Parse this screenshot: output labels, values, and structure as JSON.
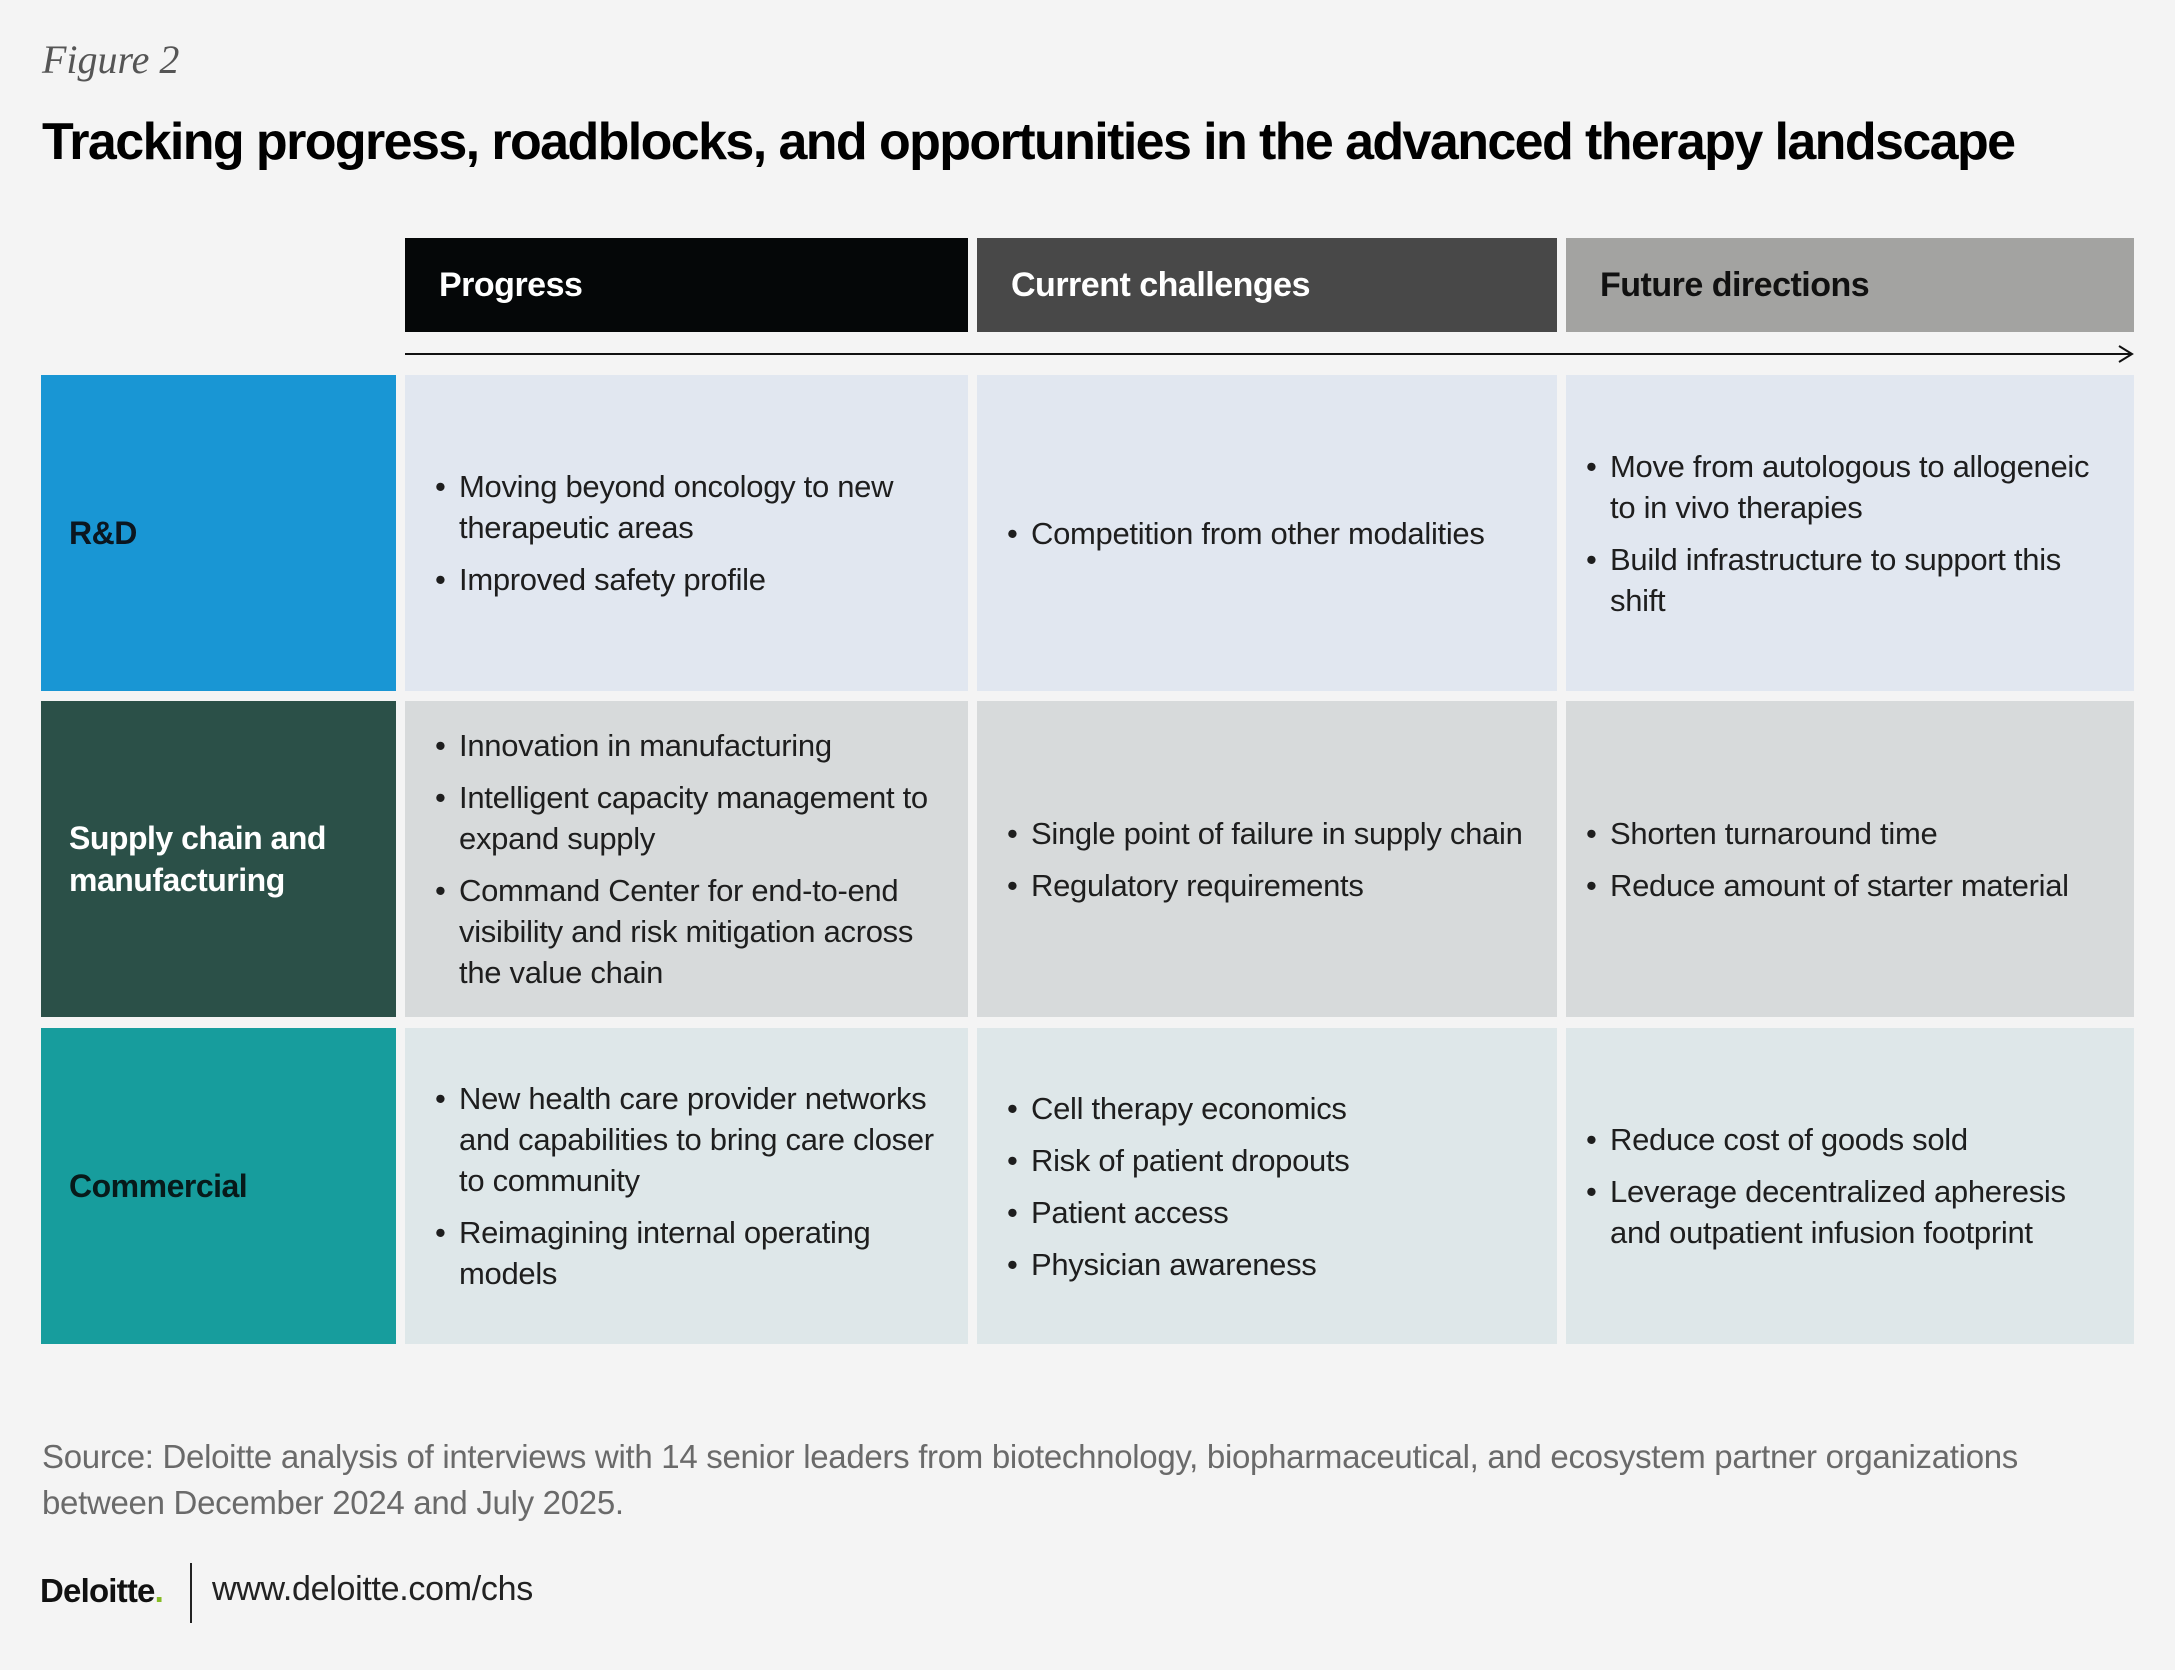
{
  "figure_label": "Figure 2",
  "title": "Tracking progress, roadblocks, and opportunities in the advanced therapy landscape",
  "columns": [
    "Progress",
    "Current challenges",
    "Future directions"
  ],
  "rows": [
    {
      "label": "R&D",
      "color": "#1996d4",
      "progress": [
        "Moving beyond oncology to new therapeutic areas",
        "Improved safety profile"
      ],
      "challenges": [
        "Competition from other modalities"
      ],
      "future": [
        "Move from autologous to allogeneic to in vivo therapies",
        "Build infrastructure to support this shift"
      ]
    },
    {
      "label": "Supply chain and manufacturing",
      "color": "#2b5048",
      "progress": [
        "Innovation in manufacturing",
        "Intelligent capacity management to expand supply",
        "Command Center for end-to-end visibility and risk mitigation across the value chain"
      ],
      "challenges": [
        "Single point of failure in supply chain",
        "Regulatory requirements"
      ],
      "future": [
        "Shorten turnaround time",
        "Reduce amount of starter material"
      ]
    },
    {
      "label": "Commercial",
      "color": "#179d9d",
      "progress": [
        "New health care provider networks and capabilities to bring care closer to community",
        "Reimagining internal operating models"
      ],
      "challenges": [
        "Cell therapy economics",
        "Risk of patient dropouts",
        "Patient access",
        "Physician awareness"
      ],
      "future": [
        "Reduce cost of goods sold",
        "Leverage decentralized apheresis and outpatient infusion footprint"
      ]
    }
  ],
  "source": "Source: Deloitte analysis of interviews with 14 senior leaders from biotechnology, biopharmaceutical, and ecosystem partner organizations between December 2024 and July 2025.",
  "footer": {
    "logo_text": "Deloitte",
    "logo_dot": ".",
    "url": "www.deloitte.com/chs"
  },
  "colors": {
    "progress_header": "#050708",
    "challenges_header": "#484848",
    "future_header": "#a3a3a1",
    "logo_dot": "#86bc25"
  }
}
